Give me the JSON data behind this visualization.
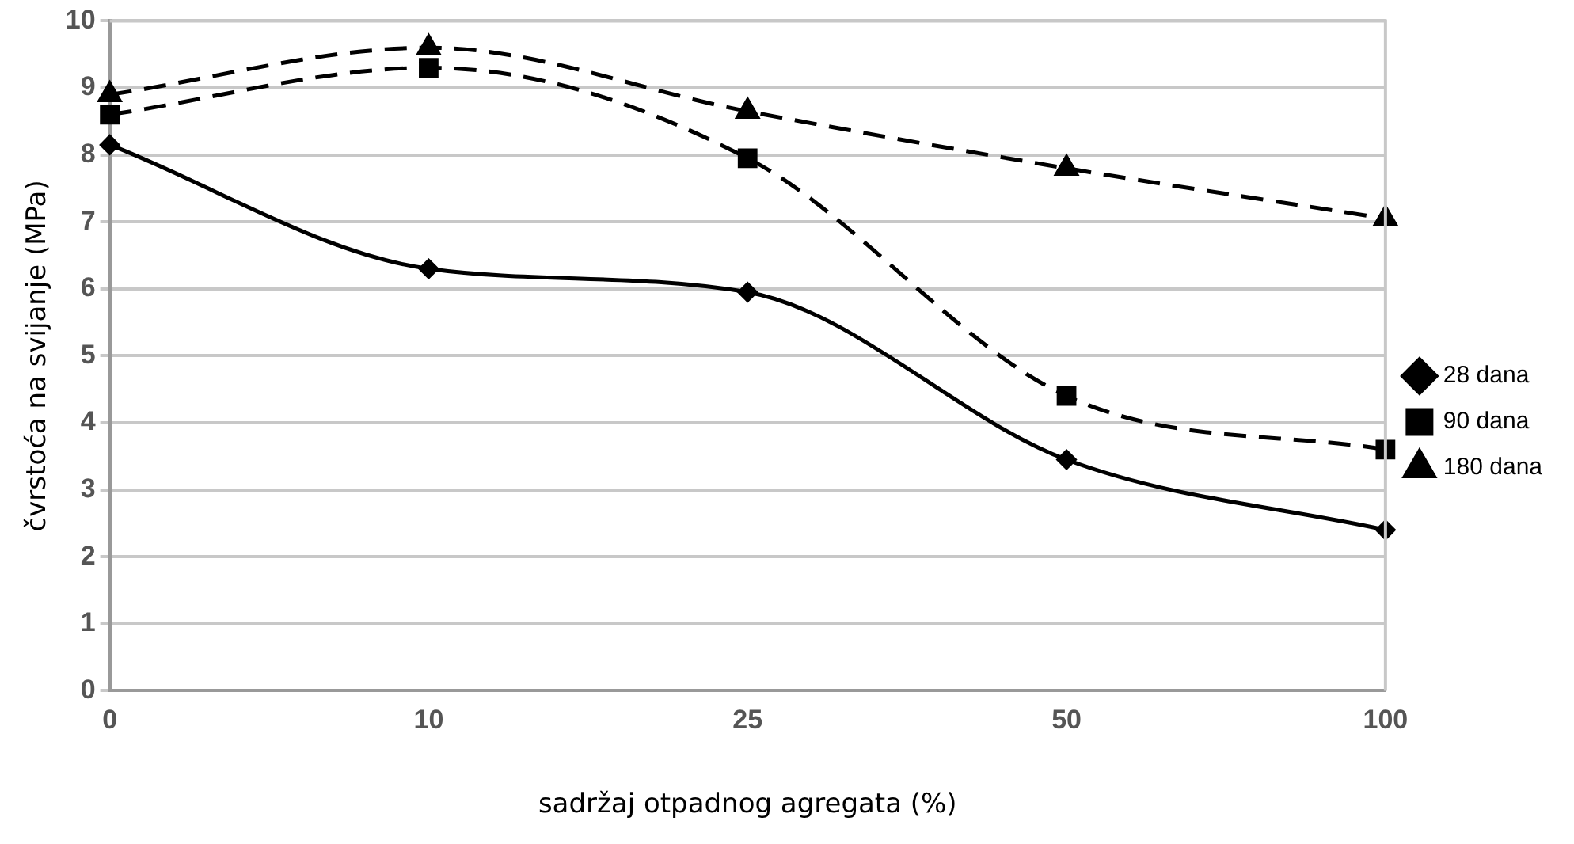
{
  "chart_data": {
    "type": "line",
    "xlabel": "sadržaj otpadnog agregata (%)",
    "ylabel": "čvrstoća na svijanje (MPa)",
    "categories": [
      "0",
      "10",
      "25",
      "50",
      "100"
    ],
    "series": [
      {
        "name": "28 dana",
        "color": "#000000",
        "marker": "diamond",
        "line_style": "solid",
        "values": [
          8.15,
          6.3,
          5.95,
          3.45,
          2.4
        ]
      },
      {
        "name": "90 dana",
        "color": "#000000",
        "marker": "square",
        "line_style": "dashed",
        "values": [
          8.6,
          9.3,
          7.95,
          4.4,
          3.6
        ]
      },
      {
        "name": "180 dana",
        "color": "#000000",
        "marker": "triangle",
        "line_style": "dashed",
        "values": [
          8.9,
          9.6,
          8.65,
          7.8,
          7.05
        ]
      }
    ],
    "ylim": [
      0,
      10
    ],
    "yticks": [
      0,
      1,
      2,
      3,
      4,
      5,
      6,
      7,
      8,
      9,
      10
    ],
    "grid": "y",
    "legend": "right"
  }
}
